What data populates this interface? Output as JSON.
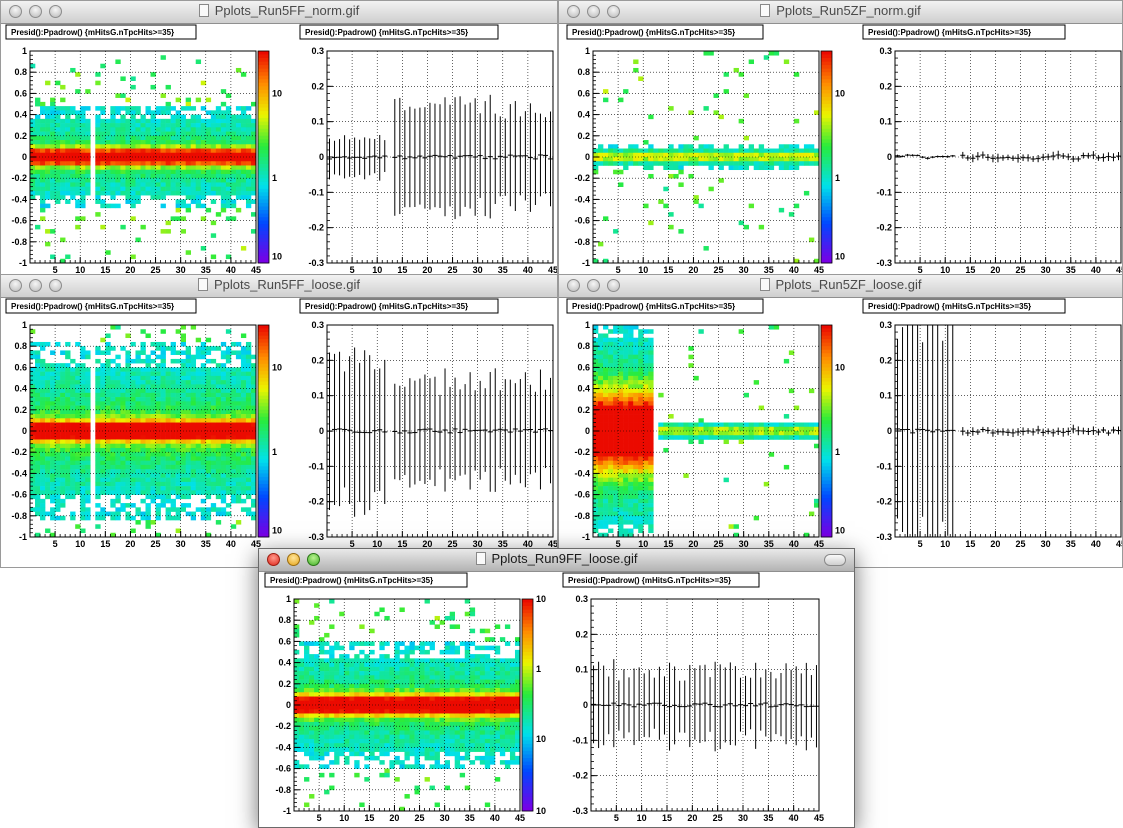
{
  "windows": [
    {
      "id": "w1",
      "title": "Pplots_Run5FF_norm.gif",
      "pad_left_title": "Presid():Ppadrow() {mHitsG.nTpcHits>=35}",
      "pad_right_title": "Presid():Ppadrow() {mHitsG.nTpcHits>=35}",
      "left_yticks": [
        "1",
        "0.8",
        "0.6",
        "0.4",
        "0.2",
        "0",
        "-0.2",
        "-0.4",
        "-0.6",
        "-0.8",
        "-1"
      ],
      "right_yticks": [
        "0.3",
        "0.2",
        "0.1",
        "0",
        "-0.1",
        "-0.2",
        "-0.3"
      ],
      "xticks": [
        "5",
        "10",
        "15",
        "20",
        "25",
        "30",
        "35",
        "40",
        "45"
      ],
      "palette_labels": [
        "10",
        "1",
        "10"
      ]
    },
    {
      "id": "w2",
      "title": "Pplots_Run5ZF_norm.gif",
      "pad_left_title": "Presid():Ppadrow() {mHitsG.nTpcHits>=35}",
      "pad_right_title": "Presid():Ppadrow() {mHitsG.nTpcHits>=35}",
      "left_yticks": [
        "1",
        "0.8",
        "0.6",
        "0.4",
        "0.2",
        "0",
        "-0.2",
        "-0.4",
        "-0.6",
        "-0.8",
        "-1"
      ],
      "right_yticks": [
        "0.3",
        "0.2",
        "0.1",
        "0",
        "-0.1",
        "-0.2",
        "-0.3"
      ],
      "xticks": [
        "5",
        "10",
        "15",
        "20",
        "25",
        "30",
        "35",
        "40",
        "45"
      ],
      "palette_labels": [
        "10",
        "1",
        "10"
      ]
    },
    {
      "id": "w3",
      "title": "Pplots_Run5FF_loose.gif",
      "pad_left_title": "Presid():Ppadrow() {mHitsG.nTpcHits>=35}",
      "pad_right_title": "Presid():Ppadrow() {mHitsG.nTpcHits>=35}",
      "left_yticks": [
        "1",
        "0.8",
        "0.6",
        "0.4",
        "0.2",
        "0",
        "-0.2",
        "-0.4",
        "-0.6",
        "-0.8",
        "-1"
      ],
      "right_yticks": [
        "0.3",
        "0.2",
        "0.1",
        "0",
        "-0.1",
        "-0.2",
        "-0.3"
      ],
      "xticks": [
        "5",
        "10",
        "15",
        "20",
        "25",
        "30",
        "35",
        "40",
        "45"
      ],
      "palette_labels": [
        "10",
        "1",
        "10"
      ]
    },
    {
      "id": "w4",
      "title": "Pplots_Run5ZF_loose.gif",
      "pad_left_title": "Presid():Ppadrow() {mHitsG.nTpcHits>=35}",
      "pad_right_title": "Presid():Ppadrow() {mHitsG.nTpcHits>=35}",
      "left_yticks": [
        "1",
        "0.8",
        "0.6",
        "0.4",
        "0.2",
        "0",
        "-0.2",
        "-0.4",
        "-0.6",
        "-0.8",
        "-1"
      ],
      "right_yticks": [
        "0.3",
        "0.2",
        "0.1",
        "0",
        "-0.1",
        "-0.2",
        "-0.3"
      ],
      "xticks": [
        "5",
        "10",
        "15",
        "20",
        "25",
        "30",
        "35",
        "40",
        "45"
      ],
      "palette_labels": [
        "10",
        "1",
        "10"
      ]
    },
    {
      "id": "w5",
      "title": "Pplots_Run9FF_loose.gif",
      "pad_left_title": "Presid():Ppadrow() {mHitsG.nTpcHits>=35}",
      "pad_right_title": "Presid():Ppadrow() {mHitsG.nTpcHits>=35}",
      "left_yticks": [
        "1",
        "0.8",
        "0.6",
        "0.4",
        "0.2",
        "0",
        "-0.2",
        "-0.4",
        "-0.6",
        "-0.8",
        "-1"
      ],
      "right_yticks": [
        "0.3",
        "0.2",
        "0.1",
        "0",
        "-0.1",
        "-0.2",
        "-0.3"
      ],
      "xticks": [
        "5",
        "10",
        "15",
        "20",
        "25",
        "30",
        "35",
        "40",
        "45"
      ],
      "palette_labels": [
        "10",
        "1",
        "10",
        "10"
      ]
    }
  ],
  "chart_data": [
    {
      "type": "heatmap",
      "window": "Pplots_Run5FF_norm.gif",
      "xlim": [
        0,
        45
      ],
      "ylim": [
        -1,
        1
      ],
      "z_scale": "log",
      "grid": true,
      "core_width": 0.05,
      "spread": 0.2,
      "empty_row": 13
    },
    {
      "type": "scatter",
      "window": "Pplots_Run5FF_norm.gif",
      "xlim": [
        0,
        45
      ],
      "ylim": [
        -0.3,
        0.3
      ],
      "grid": true,
      "error_bars": true,
      "error_halfwidth_rows_1_12": 0.055,
      "error_halfwidth_rows_14_45": 0.14
    },
    {
      "type": "heatmap",
      "window": "Pplots_Run5ZF_norm.gif",
      "xlim": [
        0,
        45
      ],
      "ylim": [
        -1,
        1
      ],
      "z_scale": "log",
      "grid": true,
      "core_width": 0.01,
      "spread": 0.05
    },
    {
      "type": "scatter",
      "window": "Pplots_Run5ZF_norm.gif",
      "xlim": [
        0,
        45
      ],
      "ylim": [
        -0.3,
        0.3
      ],
      "grid": true,
      "error_bars": true,
      "error_halfwidth_rows_1_12": 0.003,
      "error_halfwidth_rows_14_45": 0.01
    },
    {
      "type": "heatmap",
      "window": "Pplots_Run5FF_loose.gif",
      "xlim": [
        0,
        45
      ],
      "ylim": [
        -1,
        1
      ],
      "z_scale": "log",
      "grid": true,
      "core_width": 0.06,
      "spread": 0.35,
      "empty_row": 13
    },
    {
      "type": "scatter",
      "window": "Pplots_Run5FF_loose.gif",
      "xlim": [
        0,
        45
      ],
      "ylim": [
        -0.3,
        0.3
      ],
      "grid": true,
      "error_bars": true,
      "error_halfwidth_rows_1_12": 0.2,
      "error_halfwidth_rows_14_45": 0.14
    },
    {
      "type": "heatmap",
      "window": "Pplots_Run5ZF_loose.gif",
      "xlim": [
        0,
        45
      ],
      "ylim": [
        -1,
        1
      ],
      "z_scale": "log",
      "grid": true,
      "core_width_rows_1_12": 0.25,
      "spread_rows_1_12": 0.5,
      "core_width_rows_14_45": 0.01,
      "spread_rows_14_45": 0.04
    },
    {
      "type": "scatter",
      "window": "Pplots_Run5ZF_loose.gif",
      "xlim": [
        0,
        45
      ],
      "ylim": [
        -0.3,
        0.3
      ],
      "grid": true,
      "error_bars": true,
      "error_halfwidth_rows_1_12": 0.28,
      "error_halfwidth_rows_14_45": 0.01
    },
    {
      "type": "heatmap",
      "window": "Pplots_Run9FF_loose.gif",
      "xlim": [
        0,
        45
      ],
      "ylim": [
        -1,
        1
      ],
      "z_scale": "log",
      "grid": true,
      "core_width": 0.06,
      "spread": 0.25
    },
    {
      "type": "scatter",
      "window": "Pplots_Run9FF_loose.gif",
      "xlim": [
        0,
        45
      ],
      "ylim": [
        -0.3,
        0.3
      ],
      "grid": true,
      "error_bars": true,
      "error_halfwidth_rows_1_45": 0.1
    }
  ]
}
